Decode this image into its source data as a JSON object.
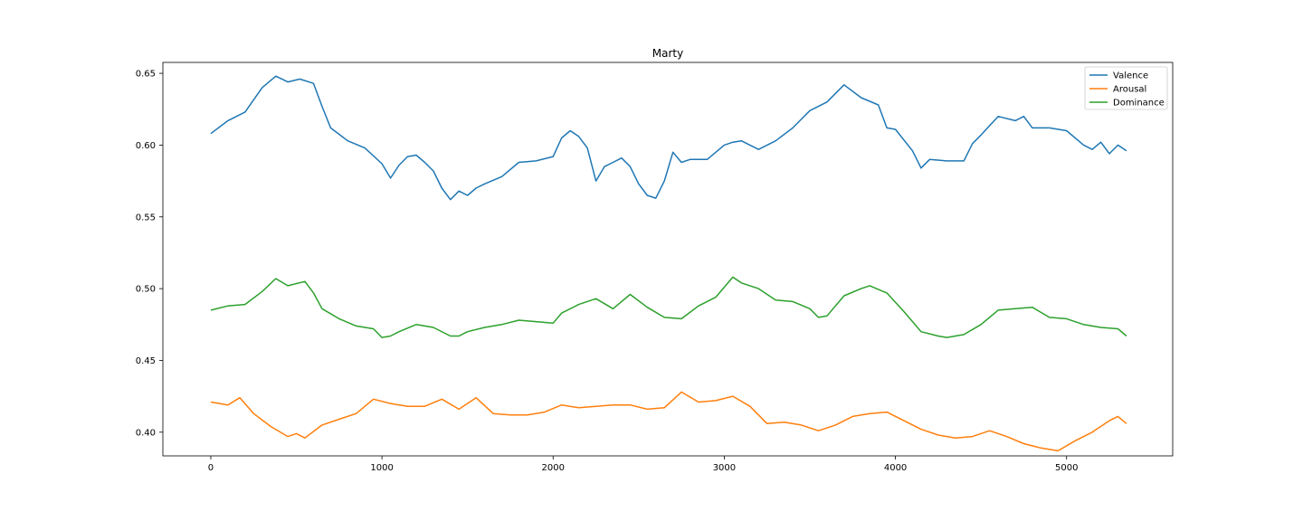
{
  "chart_data": {
    "type": "line",
    "title": "Marty",
    "xlabel": "",
    "ylabel": "",
    "xlim": [
      -280,
      5620
    ],
    "ylim": [
      0.3835,
      0.6576
    ],
    "xticks": [
      0,
      1000,
      2000,
      3000,
      4000,
      5000
    ],
    "xtick_labels": [
      "0",
      "1000",
      "2000",
      "3000",
      "4000",
      "5000"
    ],
    "yticks": [
      0.4,
      0.45,
      0.5,
      0.55,
      0.6,
      0.65
    ],
    "ytick_labels": [
      "0.40",
      "0.45",
      "0.50",
      "0.55",
      "0.60",
      "0.65"
    ],
    "grid": false,
    "legend_position": "top-right",
    "series": [
      {
        "name": "Valence",
        "color": "#1f77b4",
        "x": [
          0,
          100,
          150,
          200,
          300,
          380,
          450,
          520,
          600,
          650,
          700,
          800,
          900,
          1000,
          1050,
          1100,
          1150,
          1200,
          1250,
          1300,
          1350,
          1400,
          1450,
          1500,
          1550,
          1600,
          1700,
          1800,
          1900,
          2000,
          2050,
          2100,
          2150,
          2200,
          2250,
          2300,
          2350,
          2400,
          2450,
          2500,
          2550,
          2600,
          2650,
          2700,
          2750,
          2800,
          2900,
          3000,
          3050,
          3100,
          3200,
          3300,
          3400,
          3500,
          3600,
          3700,
          3800,
          3900,
          3950,
          4000,
          4100,
          4150,
          4200,
          4300,
          4400,
          4450,
          4500,
          4600,
          4700,
          4750,
          4800,
          4900,
          5000,
          5100,
          5150,
          5200,
          5250,
          5300,
          5350
        ],
        "y": [
          0.608,
          0.617,
          0.62,
          0.623,
          0.64,
          0.648,
          0.644,
          0.646,
          0.643,
          0.627,
          0.612,
          0.603,
          0.598,
          0.587,
          0.577,
          0.586,
          0.592,
          0.593,
          0.588,
          0.582,
          0.57,
          0.562,
          0.568,
          0.565,
          0.57,
          0.573,
          0.578,
          0.588,
          0.589,
          0.592,
          0.605,
          0.61,
          0.606,
          0.598,
          0.575,
          0.585,
          0.588,
          0.591,
          0.585,
          0.573,
          0.565,
          0.563,
          0.575,
          0.595,
          0.588,
          0.59,
          0.59,
          0.6,
          0.602,
          0.603,
          0.597,
          0.603,
          0.612,
          0.624,
          0.63,
          0.642,
          0.633,
          0.628,
          0.612,
          0.611,
          0.596,
          0.584,
          0.59,
          0.589,
          0.589,
          0.601,
          0.607,
          0.62,
          0.617,
          0.62,
          0.612,
          0.612,
          0.61,
          0.6,
          0.597,
          0.602,
          0.594,
          0.6,
          0.596
        ]
      },
      {
        "name": "Arousal",
        "color": "#ff7f0e",
        "x": [
          0,
          100,
          170,
          250,
          350,
          450,
          500,
          550,
          650,
          750,
          850,
          950,
          1050,
          1150,
          1250,
          1350,
          1450,
          1550,
          1650,
          1750,
          1850,
          1950,
          2050,
          2150,
          2250,
          2350,
          2450,
          2550,
          2650,
          2750,
          2850,
          2950,
          3050,
          3150,
          3250,
          3350,
          3450,
          3550,
          3650,
          3750,
          3850,
          3950,
          4050,
          4150,
          4250,
          4350,
          4450,
          4550,
          4650,
          4750,
          4850,
          4950,
          5050,
          5150,
          5250,
          5300,
          5350
        ],
        "y": [
          0.421,
          0.419,
          0.424,
          0.413,
          0.404,
          0.397,
          0.399,
          0.396,
          0.405,
          0.409,
          0.413,
          0.423,
          0.42,
          0.418,
          0.418,
          0.423,
          0.416,
          0.424,
          0.413,
          0.412,
          0.412,
          0.414,
          0.419,
          0.417,
          0.418,
          0.419,
          0.419,
          0.416,
          0.417,
          0.428,
          0.421,
          0.422,
          0.425,
          0.418,
          0.406,
          0.407,
          0.405,
          0.401,
          0.405,
          0.411,
          0.413,
          0.414,
          0.408,
          0.402,
          0.398,
          0.396,
          0.397,
          0.401,
          0.397,
          0.392,
          0.389,
          0.387,
          0.394,
          0.4,
          0.408,
          0.411,
          0.406
        ]
      },
      {
        "name": "Dominance",
        "color": "#2ca02c",
        "x": [
          0,
          100,
          200,
          300,
          380,
          450,
          550,
          600,
          650,
          750,
          850,
          950,
          1000,
          1050,
          1100,
          1200,
          1300,
          1400,
          1450,
          1500,
          1600,
          1700,
          1800,
          1900,
          2000,
          2050,
          2150,
          2250,
          2350,
          2450,
          2550,
          2650,
          2750,
          2850,
          2950,
          3050,
          3100,
          3200,
          3300,
          3400,
          3500,
          3550,
          3600,
          3700,
          3800,
          3850,
          3950,
          4050,
          4150,
          4250,
          4300,
          4400,
          4500,
          4600,
          4700,
          4800,
          4900,
          5000,
          5100,
          5200,
          5300,
          5350
        ],
        "y": [
          0.485,
          0.488,
          0.489,
          0.498,
          0.507,
          0.502,
          0.505,
          0.497,
          0.486,
          0.479,
          0.474,
          0.472,
          0.466,
          0.467,
          0.47,
          0.475,
          0.473,
          0.467,
          0.467,
          0.47,
          0.473,
          0.475,
          0.478,
          0.477,
          0.476,
          0.483,
          0.489,
          0.493,
          0.486,
          0.496,
          0.487,
          0.48,
          0.479,
          0.488,
          0.494,
          0.508,
          0.504,
          0.5,
          0.492,
          0.491,
          0.486,
          0.48,
          0.481,
          0.495,
          0.5,
          0.502,
          0.497,
          0.484,
          0.47,
          0.467,
          0.466,
          0.468,
          0.475,
          0.485,
          0.486,
          0.487,
          0.48,
          0.479,
          0.475,
          0.473,
          0.472,
          0.467
        ]
      }
    ]
  }
}
